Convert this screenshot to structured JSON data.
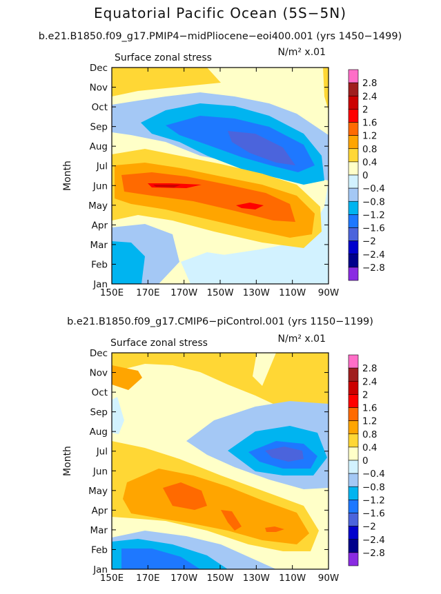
{
  "title": "Equatorial Pacific Ocean (5S−5N)",
  "chart_data": [
    {
      "type": "heatmap",
      "subtitle": "b.e21.B1850.f09_g17.PMIP4−midPliocene−eoi400.001 (yrs 1450−1499)",
      "left_label": "Surface zonal stress",
      "unit_label": "N/m² x.01",
      "xlabel": "",
      "ylabel": "Month",
      "x_ticks": [
        "150E",
        "170E",
        "170W",
        "150W",
        "130W",
        "110W",
        "90W"
      ],
      "xlim": [
        150,
        270
      ],
      "y_ticks": [
        "Jan",
        "Feb",
        "Mar",
        "Apr",
        "May",
        "Jun",
        "Jul",
        "Aug",
        "Sep",
        "Oct",
        "Nov",
        "Dec"
      ],
      "ylim": [
        1,
        12
      ],
      "features": [
        {
          "name": "positive-band-spring",
          "value_max": 2.0,
          "description": "orange/red band from Jun near 170E to Apr-May near 110W"
        },
        {
          "name": "negative-core-autumn",
          "value_min": -1.6,
          "description": "blue core Jul-Sep between 150W and 110W"
        }
      ]
    },
    {
      "type": "heatmap",
      "subtitle": "b.e21.B1850.f09_g17.CMIP6−piControl.001 (yrs 1150−1199)",
      "left_label": "Surface zonal stress",
      "unit_label": "N/m² x.01",
      "xlabel": "",
      "ylabel": "Month",
      "x_ticks": [
        "150E",
        "170E",
        "170W",
        "150W",
        "130W",
        "110W",
        "90W"
      ],
      "xlim": [
        150,
        270
      ],
      "y_ticks": [
        "Jan",
        "Feb",
        "Mar",
        "Apr",
        "May",
        "Jun",
        "Jul",
        "Aug",
        "Sep",
        "Oct",
        "Nov",
        "Dec"
      ],
      "ylim": [
        1,
        12
      ],
      "features": [
        {
          "name": "positive-band-spring",
          "value_max": 1.6,
          "description": "orange band from May-Jun near 170E to Mar near 120W"
        },
        {
          "name": "negative-core-summer",
          "value_min": -1.6,
          "description": "blue core Jul between 130W and 100W"
        }
      ]
    }
  ],
  "colorbar": {
    "levels": [
      "2.8",
      "2.4",
      "2",
      "1.6",
      "1.2",
      "0.8",
      "0.4",
      "0",
      "−0.4",
      "−0.8",
      "−1.2",
      "−1.6",
      "−2",
      "−2.4",
      "−2.8"
    ],
    "colors": [
      "#ff6ec7",
      "#a01e1e",
      "#cc0000",
      "#ff0000",
      "#ff6a00",
      "#ffa500",
      "#ffd735",
      "#ffffc8",
      "#d2f2ff",
      "#a4c8f5",
      "#00b4f0",
      "#1e78ff",
      "#4b64dc",
      "#0000cd",
      "#00008b",
      "#8a2be2"
    ]
  }
}
